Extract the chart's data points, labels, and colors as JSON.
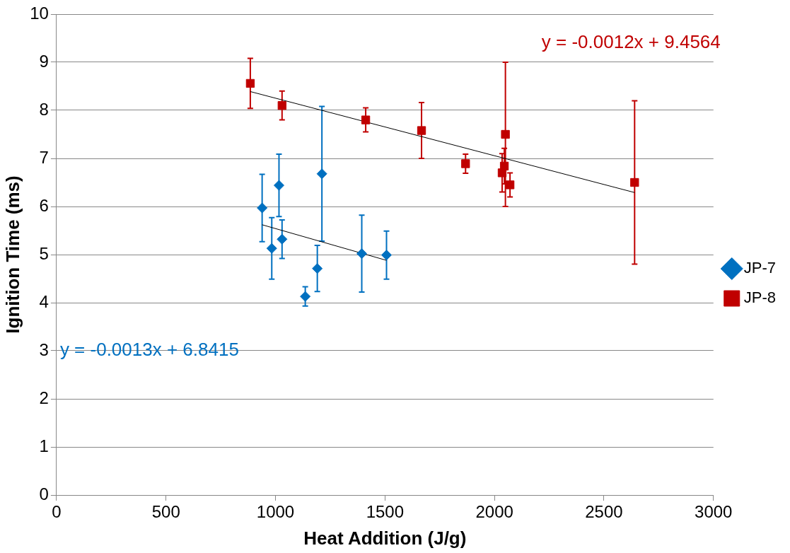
{
  "chart_data": {
    "type": "scatter",
    "xlabel": "Heat Addition (J/g)",
    "ylabel": "Ignition Time (ms)",
    "xlim": [
      0,
      3000
    ],
    "xticks": [
      0,
      500,
      1000,
      1500,
      2000,
      2500,
      3000
    ],
    "ylim": [
      0,
      10
    ],
    "yticks": [
      0,
      1,
      2,
      3,
      4,
      5,
      6,
      7,
      8,
      9,
      10
    ],
    "grid": "y",
    "legend": "right",
    "series": [
      {
        "name": "JP-7",
        "color": "#0070c0",
        "marker": "diamond",
        "x": [
          939,
          983,
          1016,
          1030,
          1136,
          1191,
          1212,
          1394,
          1507
        ],
        "values": [
          5.97,
          5.13,
          6.44,
          5.32,
          4.13,
          4.71,
          6.68,
          5.02,
          4.99
        ],
        "errors": [
          0.7,
          0.64,
          0.65,
          0.4,
          0.2,
          0.48,
          1.4,
          0.8,
          0.5
        ]
      },
      {
        "name": "JP-8",
        "color": "#c00000",
        "marker": "square",
        "x": [
          885,
          1030,
          1412,
          1667,
          1868,
          2050,
          2045,
          2035,
          2071,
          2640
        ],
        "values": [
          8.56,
          8.1,
          7.8,
          7.58,
          6.89,
          7.5,
          6.84,
          6.7,
          6.45,
          6.5
        ],
        "errors": [
          0.52,
          0.3,
          0.25,
          0.58,
          0.2,
          1.5,
          0.37,
          0.4,
          0.25,
          1.7
        ]
      },
      {
        "type": "line",
        "color": "#000000",
        "marker": "none",
        "x": [
          939,
          1507
        ],
        "values": [
          5.62,
          4.88
        ]
      },
      {
        "type": "line",
        "color": "#000000",
        "marker": "none",
        "x": [
          885,
          2640
        ],
        "values": [
          8.39,
          6.29
        ]
      }
    ],
    "annotations": [
      "y = -0.0013x + 6.8415",
      "y = -0.0012x + 9.4564"
    ]
  }
}
